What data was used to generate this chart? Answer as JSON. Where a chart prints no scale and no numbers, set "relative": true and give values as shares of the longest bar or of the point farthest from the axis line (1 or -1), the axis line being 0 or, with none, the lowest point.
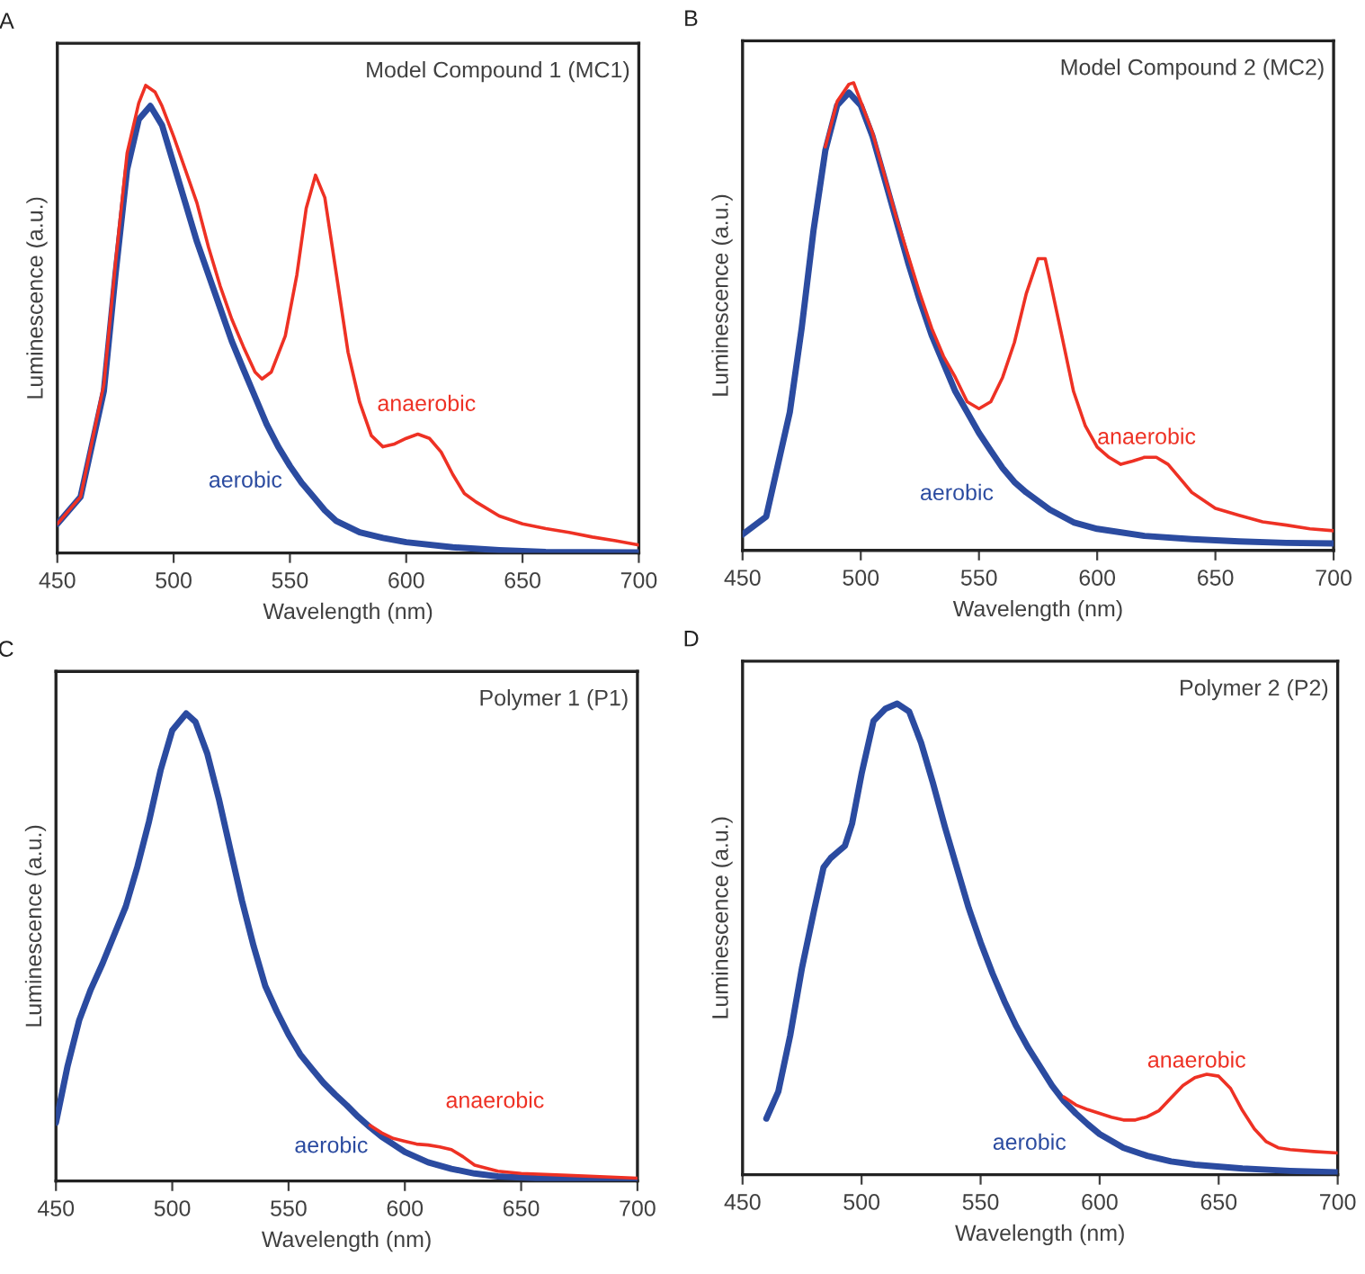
{
  "chart_data": [
    {
      "type": "line",
      "title": "Model Compound 1 (MC1)",
      "xlabel": "Wavelength (nm)",
      "ylabel": "Luminescence (a.u.)",
      "relative": true,
      "xlim": [
        450,
        700
      ],
      "xticks": [
        450,
        500,
        550,
        600,
        650,
        700
      ],
      "annotations": [
        "A"
      ],
      "series": [
        {
          "name": "anaerobic",
          "color": "#ee3124",
          "x": [
            450,
            460,
            470,
            475,
            480,
            485,
            488,
            492,
            495,
            500,
            505,
            510,
            515,
            520,
            525,
            530,
            535,
            538,
            542,
            548,
            553,
            557,
            561,
            565,
            570,
            575,
            580,
            585,
            590,
            595,
            600,
            605,
            610,
            615,
            620,
            625,
            630,
            640,
            650,
            660,
            670,
            680,
            690,
            700
          ],
          "values": [
            0.062,
            0.12,
            0.36,
            0.62,
            0.855,
            0.962,
            1.0,
            0.986,
            0.956,
            0.891,
            0.82,
            0.749,
            0.654,
            0.571,
            0.5,
            0.441,
            0.387,
            0.372,
            0.387,
            0.464,
            0.595,
            0.737,
            0.808,
            0.76,
            0.595,
            0.429,
            0.322,
            0.251,
            0.227,
            0.233,
            0.245,
            0.254,
            0.245,
            0.216,
            0.168,
            0.127,
            0.109,
            0.079,
            0.062,
            0.052,
            0.044,
            0.034,
            0.026,
            0.017
          ]
        },
        {
          "name": "aerobic",
          "color": "#2b4ba0",
          "x": [
            450,
            460,
            470,
            475,
            480,
            485,
            490,
            495,
            500,
            505,
            510,
            515,
            520,
            525,
            530,
            535,
            540,
            545,
            550,
            555,
            560,
            565,
            570,
            580,
            590,
            600,
            620,
            640,
            660,
            700
          ],
          "values": [
            0.062,
            0.12,
            0.346,
            0.595,
            0.82,
            0.927,
            0.956,
            0.915,
            0.832,
            0.749,
            0.666,
            0.595,
            0.524,
            0.453,
            0.393,
            0.334,
            0.275,
            0.227,
            0.186,
            0.15,
            0.121,
            0.091,
            0.068,
            0.044,
            0.032,
            0.023,
            0.012,
            0.006,
            0.002,
            0.001
          ]
        }
      ]
    },
    {
      "type": "line",
      "title": "Model Compound 2 (MC2)",
      "xlabel": "Wavelength (nm)",
      "ylabel": "Luminescence (a.u.)",
      "relative": true,
      "xlim": [
        450,
        700
      ],
      "xticks": [
        450,
        500,
        550,
        600,
        650,
        700
      ],
      "annotations": [
        "B"
      ],
      "series": [
        {
          "name": "anaerobic",
          "color": "#ee3124",
          "x": [
            485,
            490,
            495,
            497,
            500,
            505,
            510,
            515,
            520,
            525,
            530,
            535,
            540,
            545,
            550,
            555,
            560,
            565,
            570,
            575,
            578,
            580,
            585,
            590,
            595,
            600,
            605,
            610,
            615,
            620,
            625,
            630,
            635,
            640,
            650,
            660,
            670,
            680,
            690,
            700
          ],
          "values": [
            0.863,
            0.96,
            0.997,
            1.0,
            0.96,
            0.893,
            0.803,
            0.713,
            0.631,
            0.549,
            0.475,
            0.415,
            0.37,
            0.318,
            0.303,
            0.318,
            0.37,
            0.445,
            0.549,
            0.624,
            0.624,
            0.579,
            0.46,
            0.34,
            0.266,
            0.221,
            0.199,
            0.184,
            0.191,
            0.199,
            0.199,
            0.184,
            0.154,
            0.124,
            0.09,
            0.075,
            0.061,
            0.054,
            0.046,
            0.042
          ]
        },
        {
          "name": "aerobic",
          "color": "#2b4ba0",
          "x": [
            450,
            460,
            470,
            475,
            480,
            485,
            490,
            495,
            500,
            505,
            510,
            515,
            520,
            525,
            530,
            535,
            540,
            545,
            550,
            555,
            560,
            565,
            570,
            580,
            590,
            600,
            620,
            640,
            660,
            680,
            700
          ],
          "values": [
            0.034,
            0.072,
            0.296,
            0.475,
            0.684,
            0.855,
            0.952,
            0.979,
            0.952,
            0.885,
            0.796,
            0.706,
            0.616,
            0.534,
            0.46,
            0.4,
            0.34,
            0.296,
            0.251,
            0.213,
            0.176,
            0.146,
            0.124,
            0.087,
            0.06,
            0.046,
            0.031,
            0.024,
            0.019,
            0.016,
            0.015
          ]
        }
      ]
    },
    {
      "type": "line",
      "title": "Polymer 1 (P1)",
      "xlabel": "Wavelength (nm)",
      "ylabel": "Luminescence (a.u.)",
      "relative": true,
      "xlim": [
        450,
        700
      ],
      "xticks": [
        450,
        500,
        550,
        600,
        650,
        700
      ],
      "annotations": [
        "C"
      ],
      "series": [
        {
          "name": "anaerobic",
          "color": "#ee3124",
          "x": [
            585,
            590,
            595,
            600,
            605,
            610,
            615,
            620,
            625,
            630,
            640,
            650,
            670,
            700
          ],
          "values": [
            0.119,
            0.103,
            0.091,
            0.085,
            0.079,
            0.077,
            0.073,
            0.067,
            0.052,
            0.034,
            0.021,
            0.016,
            0.012,
            0.006
          ]
        },
        {
          "name": "aerobic",
          "color": "#2b4ba0",
          "x": [
            450,
            455,
            460,
            465,
            470,
            475,
            480,
            485,
            490,
            495,
            500,
            506,
            510,
            515,
            520,
            525,
            530,
            535,
            540,
            545,
            550,
            555,
            560,
            565,
            570,
            575,
            580,
            585,
            590,
            600,
            610,
            620,
            630,
            640,
            660,
            700
          ],
          "values": [
            0.125,
            0.246,
            0.344,
            0.41,
            0.465,
            0.526,
            0.587,
            0.672,
            0.769,
            0.879,
            0.964,
            1.0,
            0.982,
            0.915,
            0.818,
            0.708,
            0.599,
            0.502,
            0.417,
            0.362,
            0.313,
            0.271,
            0.24,
            0.21,
            0.185,
            0.162,
            0.137,
            0.115,
            0.095,
            0.062,
            0.04,
            0.026,
            0.016,
            0.01,
            0.005,
            0.001
          ]
        }
      ]
    },
    {
      "type": "line",
      "title": "Polymer 2 (P2)",
      "xlabel": "Wavelength (nm)",
      "ylabel": "Luminescence (a.u.)",
      "relative": true,
      "xlim": [
        450,
        700
      ],
      "xticks": [
        450,
        500,
        550,
        600,
        650,
        700
      ],
      "annotations": [
        "D"
      ],
      "series": [
        {
          "name": "anaerobic",
          "color": "#ee3124",
          "x": [
            585,
            590,
            595,
            600,
            605,
            610,
            615,
            620,
            625,
            630,
            635,
            640,
            645,
            650,
            655,
            660,
            665,
            670,
            675,
            680,
            690,
            700
          ],
          "values": [
            0.165,
            0.148,
            0.138,
            0.13,
            0.122,
            0.116,
            0.116,
            0.123,
            0.136,
            0.163,
            0.189,
            0.206,
            0.213,
            0.209,
            0.183,
            0.136,
            0.097,
            0.07,
            0.057,
            0.053,
            0.049,
            0.046
          ]
        },
        {
          "name": "aerobic",
          "color": "#2b4ba0",
          "x": [
            460,
            465,
            470,
            475,
            480,
            484,
            487,
            490,
            493,
            496,
            500,
            505,
            510,
            515,
            520,
            525,
            530,
            535,
            540,
            545,
            550,
            555,
            560,
            565,
            570,
            575,
            580,
            585,
            590,
            595,
            600,
            610,
            620,
            630,
            640,
            660,
            680,
            700
          ],
          "values": [
            0.119,
            0.176,
            0.295,
            0.44,
            0.56,
            0.652,
            0.672,
            0.685,
            0.698,
            0.745,
            0.851,
            0.963,
            0.989,
            1.0,
            0.983,
            0.917,
            0.831,
            0.738,
            0.652,
            0.566,
            0.493,
            0.427,
            0.368,
            0.315,
            0.269,
            0.229,
            0.189,
            0.156,
            0.13,
            0.107,
            0.086,
            0.057,
            0.04,
            0.028,
            0.021,
            0.013,
            0.008,
            0.005
          ]
        }
      ]
    }
  ]
}
